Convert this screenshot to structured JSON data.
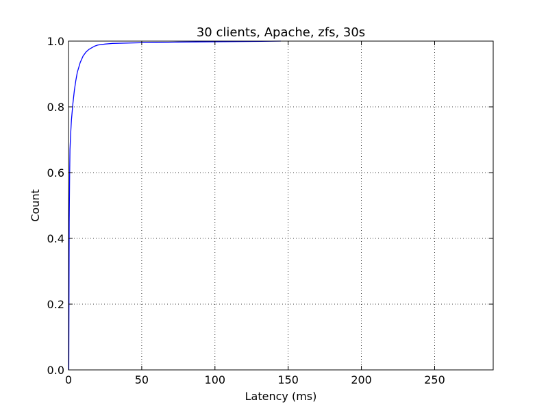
{
  "chart_data": {
    "type": "line",
    "title": "30 clients, Apache, zfs, 30s",
    "xlabel": "Latency (ms)",
    "ylabel": "Count",
    "xlim": [
      0,
      290
    ],
    "ylim": [
      0,
      1.0
    ],
    "xticks": [
      0,
      50,
      100,
      150,
      200,
      250
    ],
    "xtick_labels": [
      "0",
      "50",
      "100",
      "150",
      "200",
      "250"
    ],
    "yticks": [
      0.0,
      0.2,
      0.4,
      0.6,
      0.8,
      1.0
    ],
    "ytick_labels": [
      "0.0",
      "0.2",
      "0.4",
      "0.6",
      "0.8",
      "1.0"
    ],
    "grid": true,
    "series": [
      {
        "color": "#0000ff",
        "x": [
          0.2,
          0.5,
          0.8,
          1.0,
          1.5,
          2.0,
          3.0,
          4.0,
          5.0,
          6.0,
          7.0,
          8.0,
          10.0,
          12.0,
          14.0,
          16.0,
          18.0,
          20.0,
          25.0,
          30.0,
          40.0,
          50.0,
          60.0,
          75.0,
          100.0,
          125.0,
          145.0
        ],
        "y": [
          0.0,
          0.45,
          0.6,
          0.67,
          0.72,
          0.76,
          0.81,
          0.85,
          0.88,
          0.905,
          0.92,
          0.935,
          0.955,
          0.967,
          0.975,
          0.98,
          0.985,
          0.988,
          0.991,
          0.993,
          0.994,
          0.995,
          0.996,
          0.997,
          0.998,
          0.999,
          1.0
        ]
      }
    ]
  }
}
